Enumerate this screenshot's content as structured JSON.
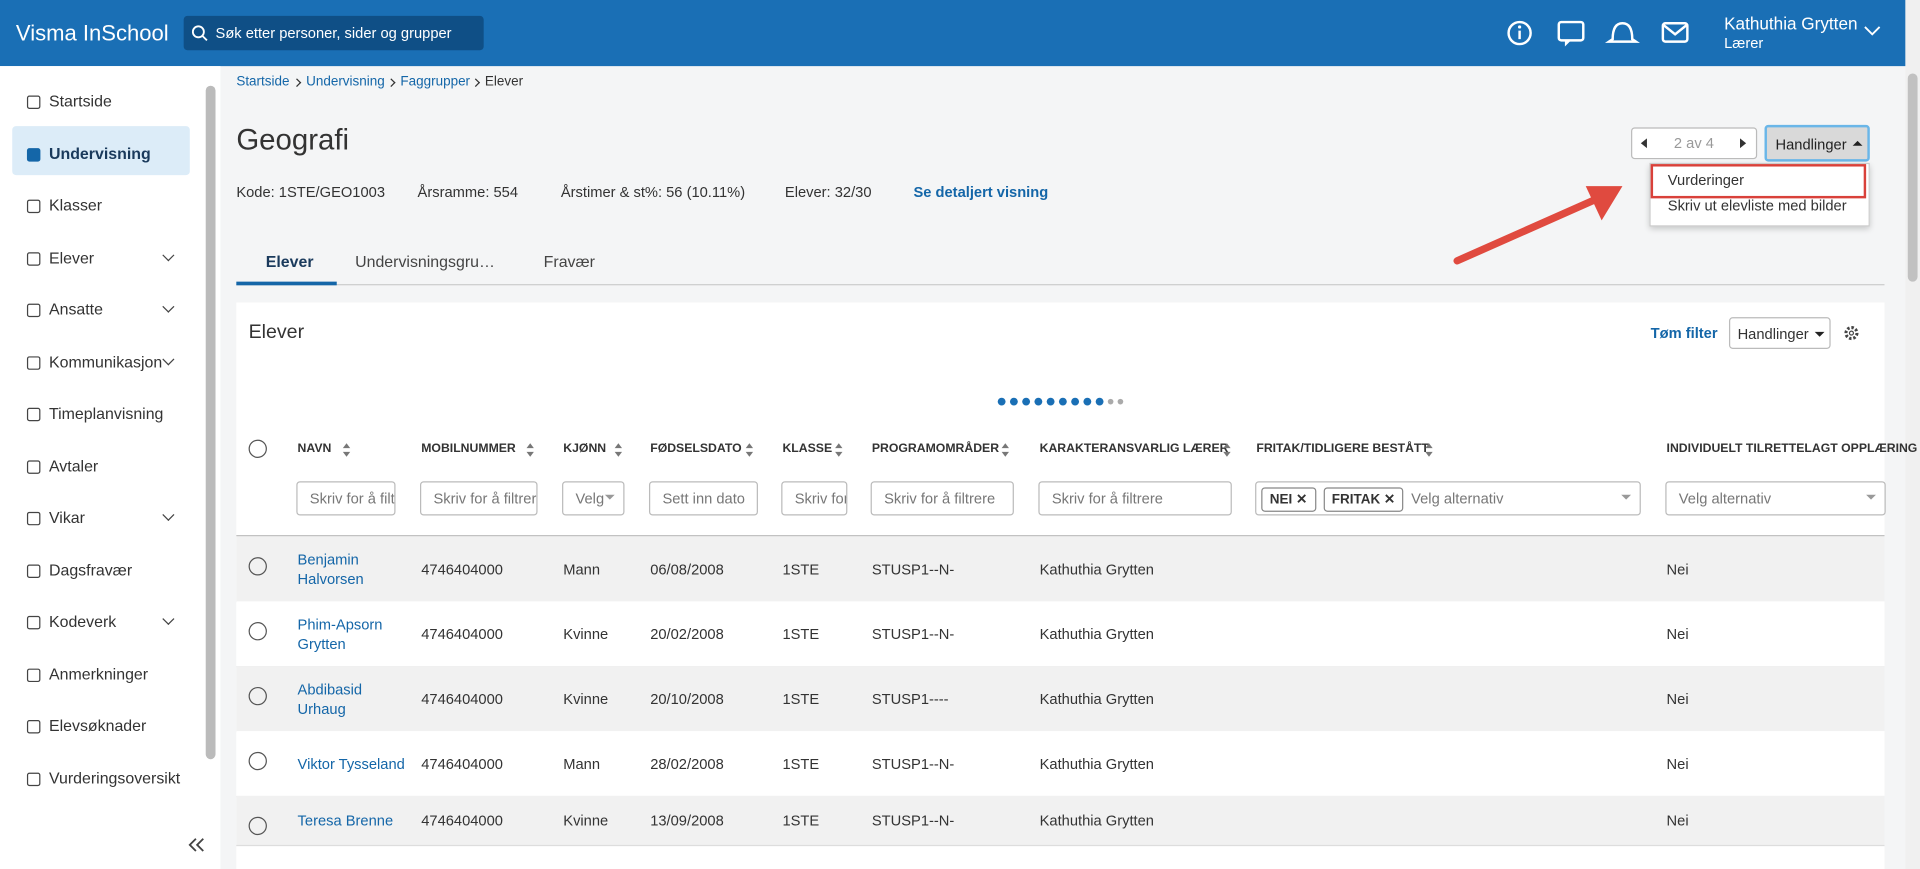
{
  "header": {
    "app_name": "Visma InSchool",
    "search_placeholder": "Søk etter personer, sider og grupper",
    "user_name": "Kathuthia Grytten",
    "user_role": "Lærer"
  },
  "sidebar": {
    "items": [
      {
        "label": "Startside"
      },
      {
        "label": "Undervisning",
        "active": true
      },
      {
        "label": "Klasser"
      },
      {
        "label": "Elever",
        "has_submenu": true
      },
      {
        "label": "Ansatte",
        "has_submenu": true
      },
      {
        "label": "Kommunikasjon",
        "has_submenu": true
      },
      {
        "label": "Timeplanvisning"
      },
      {
        "label": "Avtaler"
      },
      {
        "label": "Vikar",
        "has_submenu": true
      },
      {
        "label": "Dagsfravær"
      },
      {
        "label": "Kodeverk",
        "has_submenu": true
      },
      {
        "label": "Anmerkninger"
      },
      {
        "label": "Elevsøknader"
      },
      {
        "label": "Vurderingsoversikt"
      }
    ]
  },
  "breadcrumb": [
    "Startside",
    "Undervisning",
    "Faggrupper",
    "Elever"
  ],
  "page": {
    "title": "Geografi",
    "info": [
      "Kode: 1STE/GEO1003",
      "Årsramme: 554",
      "Årstimer & st%: 56 (10.11%)",
      "Elever: 32/30"
    ],
    "detail_link": "Se detaljert visning",
    "pager": "2 av 4",
    "actions_button": "Handlinger",
    "dropdown": [
      "Vurderinger",
      "Skriv ut elevliste med bilder"
    ]
  },
  "tabs": [
    "Elever",
    "Undervisningsgrupper",
    "Fravær"
  ],
  "panel": {
    "title": "Elever",
    "clear_filter": "Tøm filter",
    "actions_button": "Handlinger"
  },
  "table": {
    "columns": [
      {
        "label": "NAVN",
        "filter": "Skriv for å filtrere"
      },
      {
        "label": "MOBILNUMMER",
        "filter": "Skriv for å filtrere"
      },
      {
        "label": "KJØNN",
        "filter": "Velg"
      },
      {
        "label": "FØDSELSDATO",
        "filter": "Sett inn dato"
      },
      {
        "label": "KLASSE",
        "filter": "Skriv for å filtrere"
      },
      {
        "label": "PROGRAMOMRÅDER",
        "filter": "Skriv for å filtrere"
      },
      {
        "label": "KARAKTERANSVARLIG LÆRER",
        "filter": "Skriv for å filtrere"
      },
      {
        "label": "FRITAK/TIDLIGERE BESTÅTT",
        "filter": "Velg alternativ",
        "chips": [
          "NEI",
          "FRITAK"
        ]
      },
      {
        "label": "INDIVIDUELT TILRETTELAGT OPPLÆRING",
        "filter": "Velg alternativ"
      }
    ],
    "rows": [
      [
        "Benjamin Halvorsen",
        "4746404000",
        "Mann",
        "06/08/2008",
        "1STE",
        "STUSP1--N-",
        "Kathuthia Grytten",
        null,
        "Nei"
      ],
      [
        "Phim-Apsorn Grytten",
        "4746404000",
        "Kvinne",
        "20/02/2008",
        "1STE",
        "STUSP1--N-",
        "Kathuthia Grytten",
        null,
        "Nei"
      ],
      [
        "Abdibasid Urhaug",
        "4746404000",
        "Kvinne",
        "20/10/2008",
        "1STE",
        "STUSP1----",
        "Kathuthia Grytten",
        null,
        "Nei"
      ],
      [
        "Viktor Tysseland",
        "4746404000",
        "Mann",
        "28/02/2008",
        "1STE",
        "STUSP1--N-",
        "Kathuthia Grytten",
        null,
        "Nei"
      ],
      [
        "Teresa Brenne",
        "4746404000",
        "Kvinne",
        "13/09/2008",
        "1STE",
        "STUSP1--N-",
        "Kathuthia Grytten",
        null,
        "Nei"
      ]
    ]
  }
}
